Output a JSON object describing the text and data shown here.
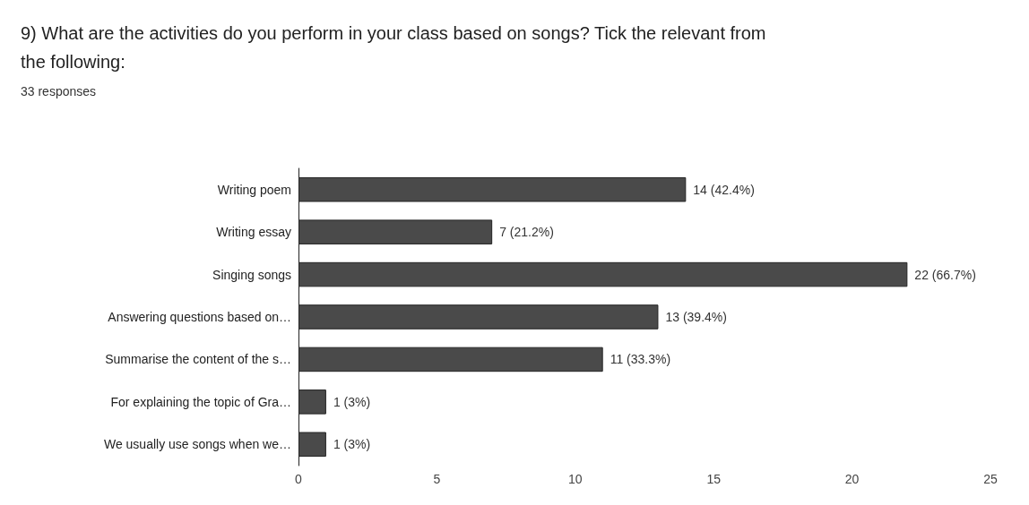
{
  "chart_data": {
    "type": "bar",
    "orientation": "horizontal",
    "title": "9) What are the activities do you perform in your class based on songs? Tick the relevant from the following:",
    "subtitle": "33 responses",
    "categories": [
      "Writing poem",
      "Writing essay",
      "Singing songs",
      "Answering questions based on…",
      "Summarise the content of the s…",
      "For explaining the topic of Gra…",
      "We usually use songs when we…"
    ],
    "values": [
      14,
      7,
      22,
      13,
      11,
      1,
      1
    ],
    "value_labels": [
      "14 (42.4%)",
      "7 (21.2%)",
      "22 (66.7%)",
      "13 (39.4%)",
      "11 (33.3%)",
      "1 (3%)",
      "1 (3%)"
    ],
    "color": "#4a4a4a",
    "xlim": [
      0,
      25
    ],
    "xticks": [
      0,
      5,
      10,
      15,
      20,
      25
    ]
  }
}
